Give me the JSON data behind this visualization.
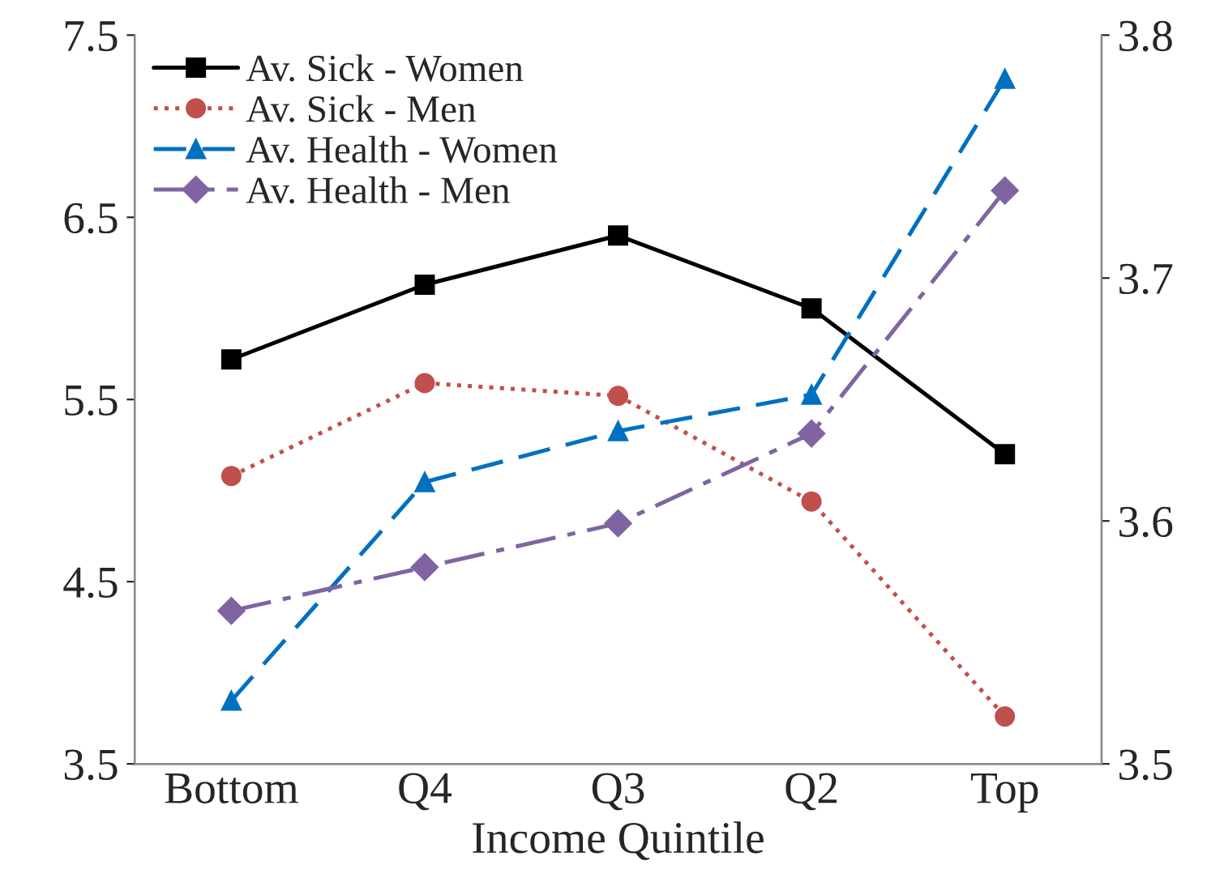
{
  "chart_data": {
    "type": "line",
    "xlabel": "Income Quintile",
    "categories": [
      "Bottom",
      "Q4",
      "Q3",
      "Q2",
      "Top"
    ],
    "series": [
      {
        "name": "Av. Sick - Women",
        "color": "#000000",
        "marker": "square",
        "line_style": "solid",
        "values": [
          5.72,
          6.13,
          6.4,
          6.0,
          5.2
        ]
      },
      {
        "name": "Av. Sick - Men",
        "color": "#c0504d",
        "marker": "circle",
        "line_style": "dotted",
        "values": [
          5.08,
          5.59,
          5.52,
          4.94,
          3.76
        ]
      },
      {
        "name": "Av. Health - Women",
        "color": "#0070c0",
        "marker": "triangle",
        "line_style": "dashed",
        "axis": "y2",
        "values": [
          3.526,
          3.616,
          3.637,
          3.652,
          3.782
        ]
      },
      {
        "name": "Av. Health - Men",
        "color": "#8064a2",
        "marker": "diamond",
        "line_style": "dashdot",
        "axis": "y2",
        "values": [
          3.563,
          3.581,
          3.599,
          3.636,
          3.736
        ]
      }
    ],
    "ylim": [
      3.5,
      7.5
    ],
    "yticks": [
      3.5,
      4.5,
      5.5,
      6.5,
      7.5
    ],
    "y2lim": [
      3.5,
      3.8
    ],
    "y2ticks": [
      3.5,
      3.6,
      3.7,
      3.8
    ],
    "grid": false,
    "legend": "top left"
  }
}
